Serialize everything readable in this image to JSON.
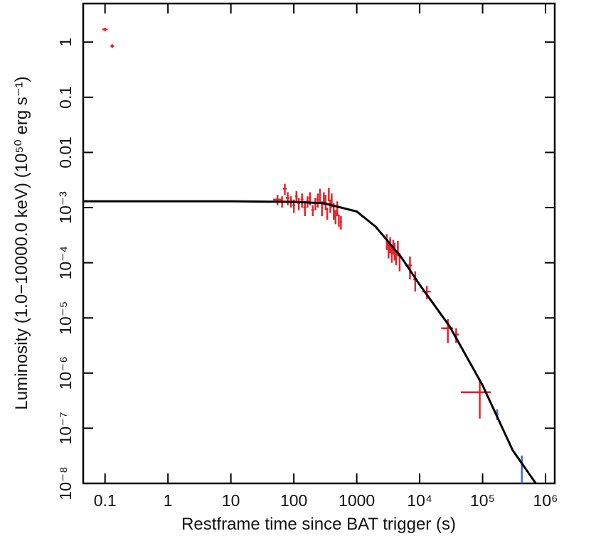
{
  "chart_data": {
    "type": "scatter",
    "xlabel": "Restframe time since BAT trigger (s)",
    "ylabel": "Luminosity (1.0−10000.0 keV) (10⁵⁰ erg s⁻¹)",
    "log_x": true,
    "log_y": true,
    "xlim": [
      0.045,
      1400000
    ],
    "ylim": [
      1e-08,
      5
    ],
    "xticks": [
      0.1,
      1,
      10,
      100,
      1000,
      {
        "value": 10000,
        "label": "10⁴"
      },
      {
        "value": 100000,
        "label": "10⁵"
      },
      {
        "value": 1000000,
        "label": "10⁶"
      }
    ],
    "yticks": [
      {
        "value": 1e-08,
        "label": "10⁻⁸"
      },
      {
        "value": 1e-07,
        "label": "10⁻⁷"
      },
      {
        "value": 1e-06,
        "label": "10⁻⁶"
      },
      {
        "value": 1e-05,
        "label": "10⁻⁵"
      },
      {
        "value": 0.0001,
        "label": "10⁻⁴"
      },
      {
        "value": 0.001,
        "label": "10⁻³"
      },
      0.01,
      0.1,
      1
    ],
    "series": [
      {
        "color": "#e3242b",
        "x": [
          0.1,
          0.13,
          55,
          65,
          72,
          80,
          90,
          100,
          110,
          120,
          135,
          150,
          165,
          180,
          200,
          220,
          240,
          260,
          280,
          300,
          320,
          340,
          360,
          380,
          400,
          430,
          460,
          490,
          520,
          560,
          3000,
          3200,
          3400,
          3600,
          3800,
          4000,
          4200,
          4500,
          4800,
          7000,
          8500,
          13000,
          28000,
          38000,
          90000
        ],
        "xerr": [
          0.01,
          0.008,
          8,
          5,
          5,
          5,
          5,
          5,
          5,
          6,
          7,
          8,
          8,
          8,
          10,
          10,
          10,
          10,
          10,
          10,
          10,
          10,
          10,
          10,
          12,
          12,
          12,
          12,
          15,
          20,
          100,
          100,
          100,
          100,
          100,
          100,
          100,
          150,
          150,
          500,
          600,
          2000,
          6000,
          4000,
          45000
        ],
        "y": [
          1.7,
          0.85,
          0.0014,
          0.0013,
          0.0022,
          0.0015,
          0.0013,
          0.0011,
          0.0016,
          0.0012,
          0.0014,
          0.001,
          0.0013,
          0.0015,
          0.0009,
          0.0012,
          0.0014,
          0.0017,
          0.001,
          0.0015,
          0.0013,
          0.0008,
          0.0018,
          0.0011,
          0.0014,
          0.0009,
          0.0007,
          0.001,
          0.0006,
          0.00055,
          0.00025,
          0.00018,
          0.00022,
          0.00015,
          0.0002,
          0.00017,
          0.00013,
          0.00019,
          0.00011,
          9e-05,
          5e-05,
          3e-05,
          6.5e-06,
          5e-06,
          4.5e-07
        ],
        "yerr": [
          0.12,
          0.06,
          0.0003,
          0.0003,
          0.0005,
          0.0004,
          0.0003,
          0.0003,
          0.0004,
          0.0003,
          0.0004,
          0.0003,
          0.0003,
          0.0004,
          0.0002,
          0.0003,
          0.0004,
          0.0005,
          0.0003,
          0.0004,
          0.0004,
          0.0002,
          0.0005,
          0.0003,
          0.0004,
          0.0003,
          0.0002,
          0.0003,
          0.00015,
          0.00015,
          8e-05,
          6e-05,
          7e-05,
          5e-05,
          6e-05,
          6e-05,
          4e-05,
          6e-05,
          4e-05,
          4e-05,
          2e-05,
          8e-06,
          3e-06,
          1.5e-06,
          3e-07
        ]
      },
      {
        "color": "#3b6fd6",
        "x": [
          170000,
          420000
        ],
        "xerr": [
          8000,
          10000
        ],
        "y": [
          1.8e-07,
          2e-08
        ],
        "yerr": [
          4e-08,
          1.2e-08
        ]
      }
    ],
    "model": {
      "color": "#000000",
      "x": [
        0.045,
        1,
        10,
        100,
        300,
        1000,
        2000,
        5000,
        10000,
        30000,
        100000,
        300000,
        700000
      ],
      "y": [
        0.0013,
        0.0013,
        0.0013,
        0.00127,
        0.0012,
        0.00085,
        0.00045,
        0.00013,
        4e-05,
        7e-06,
        6e-07,
        4e-08,
        1e-08
      ]
    }
  }
}
